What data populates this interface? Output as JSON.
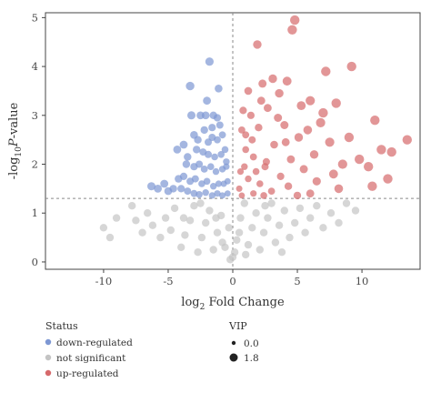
{
  "chart_data": {
    "type": "scatter",
    "title": "",
    "xlabel": {
      "prefix": "log",
      "sub": "2",
      "rest": " Fold Change"
    },
    "ylabel": {
      "prefix": "-log",
      "sub": "10",
      "italic": "P",
      "rest": "-value"
    },
    "xlim": [
      -14.5,
      14.5
    ],
    "ylim": [
      -0.15,
      5.1
    ],
    "xticks": [
      -10,
      -5,
      0,
      5,
      10
    ],
    "yticks": [
      0,
      1,
      2,
      3,
      4,
      5
    ],
    "grid": false,
    "reference_lines": {
      "vertical_x": 0,
      "horizontal_y": 1.3
    },
    "colors": {
      "down-regulated": "#7d97d3",
      "not significant": "#c4c4c4",
      "up-regulated": "#d6696b"
    },
    "series": [
      {
        "name": "down-regulated",
        "points": [
          [
            -1.8,
            4.1
          ],
          [
            -3.3,
            3.6
          ],
          [
            -1.1,
            3.55
          ],
          [
            -2.0,
            3.3
          ],
          [
            -3.2,
            3.0
          ],
          [
            -2.5,
            3.0
          ],
          [
            -1.5,
            3.0
          ],
          [
            -1.2,
            2.95
          ],
          [
            -3.0,
            2.6
          ],
          [
            -2.2,
            2.7
          ],
          [
            -1.6,
            2.55
          ],
          [
            -1.2,
            2.5
          ],
          [
            -1.0,
            2.8
          ],
          [
            -0.8,
            2.6
          ],
          [
            -2.8,
            2.3
          ],
          [
            -2.3,
            2.25
          ],
          [
            -1.9,
            2.2
          ],
          [
            -1.4,
            2.15
          ],
          [
            -0.9,
            2.2
          ],
          [
            -0.6,
            2.3
          ],
          [
            -3.6,
            2.0
          ],
          [
            -3.0,
            1.95
          ],
          [
            -2.6,
            2.0
          ],
          [
            -2.2,
            1.9
          ],
          [
            -1.7,
            1.95
          ],
          [
            -1.3,
            1.85
          ],
          [
            -0.8,
            1.9
          ],
          [
            -0.5,
            1.95
          ],
          [
            -4.2,
            1.7
          ],
          [
            -3.8,
            1.75
          ],
          [
            -3.3,
            1.65
          ],
          [
            -2.9,
            1.7
          ],
          [
            -2.4,
            1.6
          ],
          [
            -2.0,
            1.65
          ],
          [
            -1.5,
            1.55
          ],
          [
            -1.1,
            1.6
          ],
          [
            -0.7,
            1.6
          ],
          [
            -0.4,
            1.65
          ],
          [
            -4.6,
            1.5
          ],
          [
            -4.0,
            1.5
          ],
          [
            -3.5,
            1.45
          ],
          [
            -3.0,
            1.4
          ],
          [
            -2.6,
            1.38
          ],
          [
            -2.1,
            1.42
          ],
          [
            -1.6,
            1.36
          ],
          [
            -1.2,
            1.4
          ],
          [
            -0.8,
            1.36
          ],
          [
            -0.4,
            1.4
          ],
          [
            -6.3,
            1.55
          ],
          [
            -5.8,
            1.5
          ],
          [
            -5.3,
            1.6
          ],
          [
            -5.0,
            1.45
          ],
          [
            -4.3,
            2.3
          ],
          [
            -3.8,
            2.4
          ],
          [
            -3.5,
            2.15
          ],
          [
            -2.7,
            2.5
          ],
          [
            -0.5,
            2.05
          ],
          [
            -1.9,
            2.45
          ],
          [
            -1.6,
            2.75
          ],
          [
            -2.1,
            3.0
          ]
        ]
      },
      {
        "name": "not significant",
        "points": [
          [
            -10.0,
            0.7
          ],
          [
            -9.5,
            0.5
          ],
          [
            -9.0,
            0.9
          ],
          [
            -7.8,
            1.15
          ],
          [
            -7.5,
            0.85
          ],
          [
            -7.0,
            0.6
          ],
          [
            -6.6,
            1.0
          ],
          [
            -6.2,
            0.75
          ],
          [
            -5.6,
            0.5
          ],
          [
            -5.2,
            0.9
          ],
          [
            -4.8,
            0.65
          ],
          [
            -4.5,
            1.1
          ],
          [
            -4.0,
            0.3
          ],
          [
            -3.7,
            0.55
          ],
          [
            -3.3,
            0.85
          ],
          [
            -3.0,
            1.15
          ],
          [
            -2.7,
            0.2
          ],
          [
            -2.4,
            0.5
          ],
          [
            -2.1,
            0.8
          ],
          [
            -1.8,
            1.05
          ],
          [
            -1.5,
            0.25
          ],
          [
            -1.2,
            0.6
          ],
          [
            -0.9,
            0.95
          ],
          [
            -0.6,
            0.3
          ],
          [
            -0.3,
            0.7
          ],
          [
            0.0,
            0.1
          ],
          [
            0.3,
            0.45
          ],
          [
            0.6,
            0.9
          ],
          [
            0.9,
            1.2
          ],
          [
            1.2,
            0.35
          ],
          [
            1.5,
            0.7
          ],
          [
            1.8,
            1.0
          ],
          [
            2.1,
            0.25
          ],
          [
            2.4,
            0.6
          ],
          [
            2.7,
            0.9
          ],
          [
            3.0,
            1.2
          ],
          [
            3.3,
            0.4
          ],
          [
            3.6,
            0.75
          ],
          [
            4.0,
            1.05
          ],
          [
            4.4,
            0.5
          ],
          [
            4.8,
            0.8
          ],
          [
            5.2,
            1.1
          ],
          [
            5.6,
            0.6
          ],
          [
            6.0,
            0.9
          ],
          [
            6.5,
            1.15
          ],
          [
            7.0,
            0.7
          ],
          [
            7.6,
            1.0
          ],
          [
            8.2,
            0.8
          ],
          [
            8.8,
            1.2
          ],
          [
            9.5,
            1.05
          ],
          [
            -0.2,
            0.05
          ],
          [
            0.15,
            0.2
          ],
          [
            -0.8,
            0.4
          ],
          [
            0.5,
            0.6
          ],
          [
            1.0,
            0.15
          ],
          [
            -1.3,
            0.9
          ],
          [
            2.5,
            1.15
          ],
          [
            -2.5,
            1.2
          ],
          [
            3.8,
            0.2
          ],
          [
            -3.8,
            0.9
          ]
        ]
      },
      {
        "name": "up-regulated",
        "points": [
          [
            4.8,
            4.95
          ],
          [
            4.6,
            4.75
          ],
          [
            1.9,
            4.45
          ],
          [
            9.2,
            4.0
          ],
          [
            7.2,
            3.9
          ],
          [
            3.1,
            3.75
          ],
          [
            4.2,
            3.7
          ],
          [
            2.3,
            3.65
          ],
          [
            1.2,
            3.5
          ],
          [
            3.6,
            3.45
          ],
          [
            6.0,
            3.3
          ],
          [
            5.3,
            3.2
          ],
          [
            8.0,
            3.25
          ],
          [
            2.7,
            3.15
          ],
          [
            0.8,
            3.1
          ],
          [
            7.0,
            3.05
          ],
          [
            11.0,
            2.9
          ],
          [
            4.0,
            2.8
          ],
          [
            2.0,
            2.75
          ],
          [
            5.8,
            2.7
          ],
          [
            1.0,
            2.6
          ],
          [
            9.0,
            2.55
          ],
          [
            13.5,
            2.5
          ],
          [
            7.5,
            2.45
          ],
          [
            3.2,
            2.4
          ],
          [
            11.5,
            2.3
          ],
          [
            12.3,
            2.25
          ],
          [
            6.3,
            2.2
          ],
          [
            1.6,
            2.15
          ],
          [
            4.5,
            2.1
          ],
          [
            8.5,
            2.0
          ],
          [
            2.5,
            1.95
          ],
          [
            10.5,
            1.95
          ],
          [
            5.5,
            1.9
          ],
          [
            0.6,
            1.85
          ],
          [
            7.8,
            1.8
          ],
          [
            3.7,
            1.75
          ],
          [
            1.2,
            1.7
          ],
          [
            6.5,
            1.65
          ],
          [
            2.1,
            1.6
          ],
          [
            10.8,
            1.55
          ],
          [
            4.3,
            1.55
          ],
          [
            0.5,
            1.5
          ],
          [
            8.2,
            1.5
          ],
          [
            3.0,
            1.45
          ],
          [
            6.0,
            1.4
          ],
          [
            1.6,
            1.4
          ],
          [
            0.7,
            1.36
          ],
          [
            2.4,
            1.36
          ],
          [
            5.0,
            1.36
          ],
          [
            1.0,
            2.3
          ],
          [
            1.5,
            2.5
          ],
          [
            0.9,
            1.95
          ],
          [
            1.8,
            1.85
          ],
          [
            2.6,
            2.05
          ],
          [
            0.7,
            2.7
          ],
          [
            1.4,
            3.0
          ],
          [
            2.2,
            3.3
          ],
          [
            3.5,
            2.95
          ],
          [
            4.1,
            2.45
          ],
          [
            5.1,
            2.55
          ],
          [
            6.8,
            2.85
          ],
          [
            9.8,
            2.1
          ],
          [
            12.0,
            1.7
          ]
        ]
      }
    ],
    "legends": {
      "status": {
        "title": "Status",
        "entries": [
          "down-regulated",
          "not significant",
          "up-regulated"
        ]
      },
      "vip": {
        "title": "VIP",
        "entries": [
          "0.0",
          "1.8"
        ]
      }
    }
  }
}
